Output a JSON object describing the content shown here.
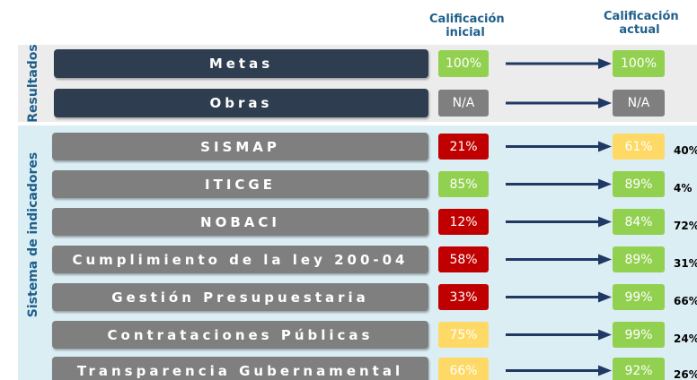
{
  "header": {
    "initial": "Calificación inicial",
    "current": "Calificación actual"
  },
  "sections": [
    {
      "label": "Resultados",
      "rows": [
        {
          "name": "Metas",
          "initial": "100%",
          "initial_color": "#92d050",
          "current": "100%",
          "current_color": "#92d050"
        },
        {
          "name": "Obras",
          "initial": "N/A",
          "initial_color": "#7f7f7f",
          "current": "N/A",
          "current_color": "#7f7f7f"
        }
      ]
    },
    {
      "label": "Sistema de indicadores",
      "rows": [
        {
          "name": "SISMAP",
          "initial": "21%",
          "initial_color": "#c00000",
          "current": "61%",
          "current_color": "#ffd966",
          "change": "40%"
        },
        {
          "name": "ITICGE",
          "initial": "85%",
          "initial_color": "#92d050",
          "current": "89%",
          "current_color": "#92d050",
          "change": "4%"
        },
        {
          "name": "NOBACI",
          "initial": "12%",
          "initial_color": "#c00000",
          "current": "84%",
          "current_color": "#92d050",
          "change": "72%"
        },
        {
          "name": "Cumplimiento de la ley 200-04",
          "initial": "58%",
          "initial_color": "#c00000",
          "current": "89%",
          "current_color": "#92d050",
          "change": "31%"
        },
        {
          "name": "Gestión Presupuestaria",
          "initial": "33%",
          "initial_color": "#c00000",
          "current": "99%",
          "current_color": "#92d050",
          "change": "66%"
        },
        {
          "name": "Contrataciones Públicas",
          "initial": "75%",
          "initial_color": "#ffd966",
          "current": "99%",
          "current_color": "#92d050",
          "change": "24%"
        },
        {
          "name": "Transparencia Gubernamental",
          "initial": "66%",
          "initial_color": "#ffd966",
          "current": "92%",
          "current_color": "#92d050",
          "change": "26%"
        }
      ]
    }
  ]
}
